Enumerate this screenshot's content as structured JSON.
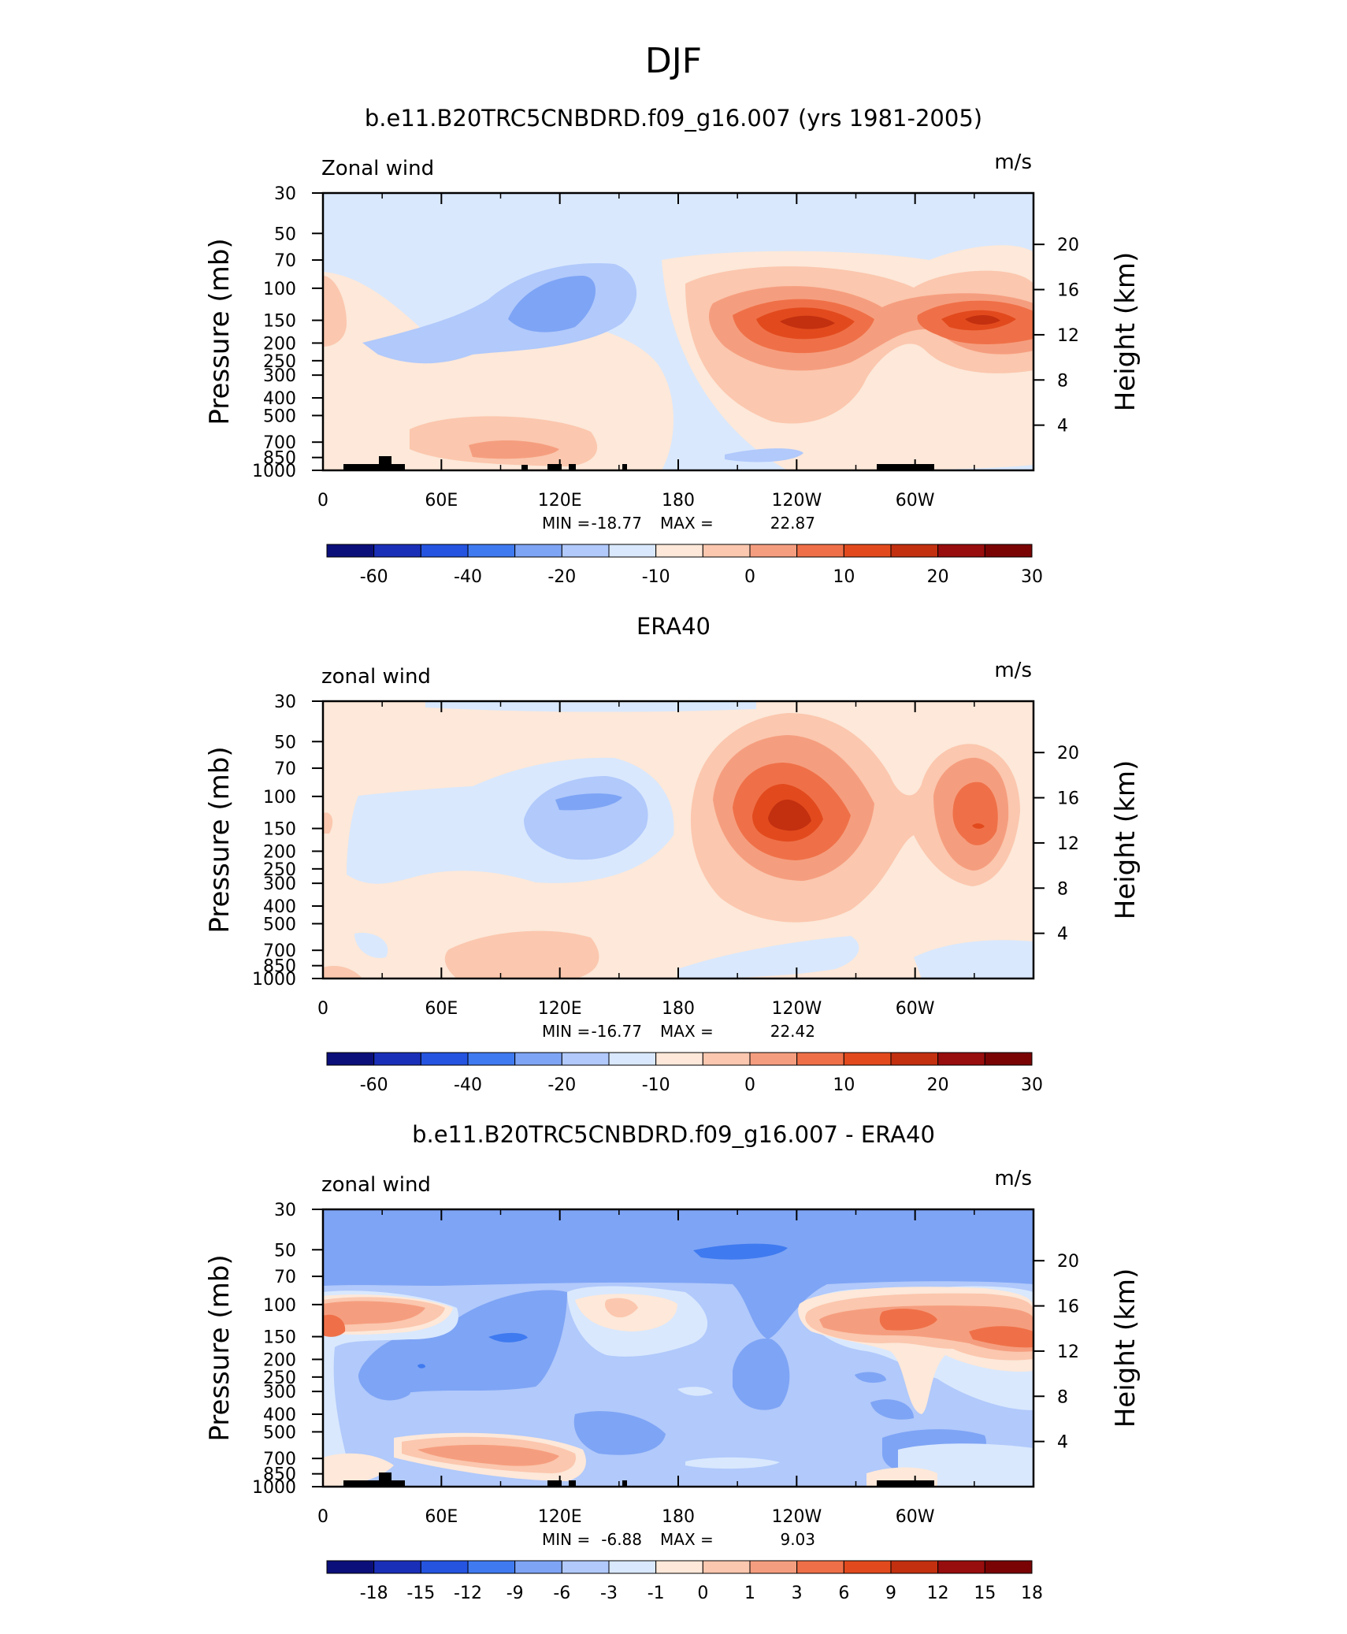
{
  "figure": {
    "title": "DJF"
  },
  "palette_main": [
    "#0b0f7a",
    "#1a2fb8",
    "#2454e0",
    "#3f7af0",
    "#7ea4f5",
    "#b1c9fb",
    "#d9e8fd",
    "#fde8d9",
    "#fbc7ae",
    "#f59e7f",
    "#ef7048",
    "#e24a1d",
    "#c23010",
    "#980d0d",
    "#7a0404"
  ],
  "palette_diff": [
    "#0b0f7a",
    "#1a2fb8",
    "#2454e0",
    "#3f7af0",
    "#7ea4f5",
    "#b1c9fb",
    "#d9e8fd",
    "#fde8d9",
    "#fbc7ae",
    "#f59e7f",
    "#ef7048",
    "#e24a1d",
    "#c23010",
    "#980d0d",
    "#7a0404"
  ],
  "panels": [
    {
      "title": "b.e11.B20TRC5CNBDRD.f09_g16.007 (yrs 1981-2005)",
      "left_label": "Zonal wind",
      "units": "m/s",
      "y_title": "Pressure (mb)",
      "y2_title": "Height (km)",
      "stats": {
        "min_label": "MIN =",
        "min": "-18.77",
        "max_label": "MAX =",
        "max": "22.87"
      },
      "colorbar_labels": [
        "-60",
        "-40",
        "-20",
        "-10",
        "0",
        "10",
        "20",
        "30"
      ]
    },
    {
      "title": "ERA40",
      "left_label": "zonal wind",
      "units": "m/s",
      "y_title": "Pressure (mb)",
      "y2_title": "Height (km)",
      "stats": {
        "min_label": "MIN =",
        "min": "-16.77",
        "max_label": "MAX =",
        "max": "22.42"
      },
      "colorbar_labels": [
        "-60",
        "-40",
        "-20",
        "-10",
        "0",
        "10",
        "20",
        "30"
      ]
    },
    {
      "title": "b.e11.B20TRC5CNBDRD.f09_g16.007 - ERA40",
      "left_label": "zonal wind",
      "units": "m/s",
      "y_title": "Pressure (mb)",
      "y2_title": "Height (km)",
      "stats": {
        "min_label": "MIN =",
        "min": "-6.88",
        "max_label": "MAX =",
        "max": "9.03"
      },
      "colorbar_labels": [
        "-18",
        "-15",
        "-12",
        "-9",
        "-6",
        "-3",
        "-1",
        "0",
        "1",
        "3",
        "6",
        "9",
        "12",
        "15",
        "18"
      ]
    }
  ],
  "chart_data": [
    {
      "type": "heatmap",
      "title": "b.e11.B20TRC5CNBDRD.f09_g16.007 (yrs 1981-2005)",
      "xlabel": "",
      "ylabel": "Pressure (mb)",
      "y2label": "Height (km)",
      "x_ticks": [
        "0",
        "60E",
        "120E",
        "180",
        "120W",
        "60W"
      ],
      "y_ticks": [
        "30",
        "50",
        "70",
        "100",
        "150",
        "200",
        "250",
        "300",
        "400",
        "500",
        "700",
        "850",
        "1000"
      ],
      "y2_ticks": [
        "20",
        "16",
        "12",
        "8",
        "4"
      ],
      "y_scale": "log",
      "min": -18.77,
      "max": 22.87,
      "contour_levels": [
        -60,
        -40,
        -20,
        -10,
        0,
        10,
        20,
        30
      ],
      "features": [
        {
          "lon": 115,
          "pressure": 120,
          "value": -15
        },
        {
          "lon": 245,
          "pressure": 150,
          "value": 22.87
        },
        {
          "lon": 325,
          "pressure": 150,
          "value": 20
        },
        {
          "lon": 105,
          "pressure": 730,
          "value": 8
        }
      ]
    },
    {
      "type": "heatmap",
      "title": "ERA40",
      "xlabel": "",
      "ylabel": "Pressure (mb)",
      "y2label": "Height (km)",
      "x_ticks": [
        "0",
        "60E",
        "120E",
        "180",
        "120W",
        "60W"
      ],
      "y_ticks": [
        "30",
        "50",
        "70",
        "100",
        "150",
        "200",
        "250",
        "300",
        "400",
        "500",
        "700",
        "850",
        "1000"
      ],
      "y2_ticks": [
        "20",
        "16",
        "12",
        "8",
        "4"
      ],
      "y_scale": "log",
      "min": -16.77,
      "max": 22.42,
      "contour_levels": [
        -60,
        -40,
        -20,
        -10,
        0,
        10,
        20,
        30
      ],
      "features": [
        {
          "lon": 130,
          "pressure": 110,
          "value": -14
        },
        {
          "lon": 238,
          "pressure": 150,
          "value": 22.42
        },
        {
          "lon": 330,
          "pressure": 150,
          "value": 20
        }
      ]
    },
    {
      "type": "heatmap",
      "title": "b.e11.B20TRC5CNBDRD.f09_g16.007 - ERA40",
      "xlabel": "",
      "ylabel": "Pressure (mb)",
      "y2label": "Height (km)",
      "x_ticks": [
        "0",
        "60E",
        "120E",
        "180",
        "120W",
        "60W"
      ],
      "y_ticks": [
        "30",
        "50",
        "70",
        "100",
        "150",
        "200",
        "250",
        "300",
        "400",
        "500",
        "700",
        "850",
        "1000"
      ],
      "y2_ticks": [
        "20",
        "16",
        "12",
        "8",
        "4"
      ],
      "y_scale": "log",
      "min": -6.88,
      "max": 9.03,
      "contour_levels": [
        -18,
        -15,
        -12,
        -9,
        -6,
        -3,
        -1,
        0,
        1,
        3,
        6,
        9,
        12,
        15,
        18
      ],
      "features": [
        {
          "lon": 15,
          "pressure": 120,
          "value": 6
        },
        {
          "lon": 310,
          "pressure": 140,
          "value": 9.03
        },
        {
          "lon": 205,
          "pressure": 55,
          "value": -6.88
        },
        {
          "lon": 80,
          "pressure": 750,
          "value": 6
        }
      ]
    }
  ]
}
